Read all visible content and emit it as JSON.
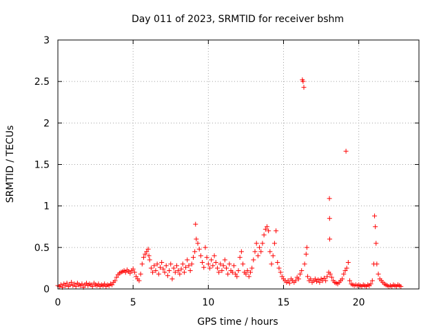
{
  "chart_data": {
    "type": "scatter",
    "title": "Day 011 of 2023, SRMTID for receiver bshm",
    "xlabel": "GPS time / hours",
    "ylabel": "SRMTID / TECUs",
    "xlim": [
      0,
      24
    ],
    "ylim": [
      0,
      3
    ],
    "xticks": [
      "0",
      "5",
      "10",
      "15",
      "20"
    ],
    "yticks": [
      "0",
      "0.5",
      "1",
      "1.5",
      "2",
      "2.5",
      "3"
    ],
    "grid": true,
    "legend": "none",
    "marker": "plus",
    "color": "#ff0000",
    "series": [
      {
        "points": [
          [
            0.0,
            0.04
          ],
          [
            0.1,
            0.03
          ],
          [
            0.2,
            0.05
          ],
          [
            0.3,
            0.02
          ],
          [
            0.4,
            0.06
          ],
          [
            0.5,
            0.04
          ],
          [
            0.6,
            0.07
          ],
          [
            0.7,
            0.03
          ],
          [
            0.8,
            0.05
          ],
          [
            0.9,
            0.08
          ],
          [
            1.0,
            0.04
          ],
          [
            1.1,
            0.06
          ],
          [
            1.2,
            0.03
          ],
          [
            1.3,
            0.07
          ],
          [
            1.4,
            0.05
          ],
          [
            1.5,
            0.04
          ],
          [
            1.6,
            0.06
          ],
          [
            1.7,
            0.02
          ],
          [
            1.8,
            0.05
          ],
          [
            1.9,
            0.07
          ],
          [
            2.0,
            0.04
          ],
          [
            2.1,
            0.06
          ],
          [
            2.2,
            0.05
          ],
          [
            2.3,
            0.03
          ],
          [
            2.4,
            0.07
          ],
          [
            2.5,
            0.05
          ],
          [
            2.6,
            0.04
          ],
          [
            2.7,
            0.06
          ],
          [
            2.8,
            0.03
          ],
          [
            2.9,
            0.05
          ],
          [
            3.0,
            0.04
          ],
          [
            3.1,
            0.06
          ],
          [
            3.2,
            0.03
          ],
          [
            3.3,
            0.05
          ],
          [
            3.4,
            0.04
          ],
          [
            3.5,
            0.06
          ],
          [
            3.6,
            0.05
          ],
          [
            3.7,
            0.08
          ],
          [
            3.8,
            0.1
          ],
          [
            3.9,
            0.14
          ],
          [
            4.0,
            0.17
          ],
          [
            4.1,
            0.19
          ],
          [
            4.2,
            0.2
          ],
          [
            4.3,
            0.21
          ],
          [
            4.4,
            0.22
          ],
          [
            4.5,
            0.2
          ],
          [
            4.6,
            0.23
          ],
          [
            4.7,
            0.21
          ],
          [
            4.8,
            0.19
          ],
          [
            4.9,
            0.22
          ],
          [
            5.0,
            0.24
          ],
          [
            5.1,
            0.2
          ],
          [
            5.2,
            0.15
          ],
          [
            5.3,
            0.12
          ],
          [
            5.4,
            0.1
          ],
          [
            5.5,
            0.18
          ],
          [
            5.6,
            0.3
          ],
          [
            5.7,
            0.38
          ],
          [
            5.8,
            0.42
          ],
          [
            5.9,
            0.45
          ],
          [
            6.0,
            0.48
          ],
          [
            6.05,
            0.4
          ],
          [
            6.1,
            0.35
          ],
          [
            6.2,
            0.25
          ],
          [
            6.3,
            0.2
          ],
          [
            6.4,
            0.28
          ],
          [
            6.5,
            0.22
          ],
          [
            6.6,
            0.3
          ],
          [
            6.7,
            0.18
          ],
          [
            6.8,
            0.26
          ],
          [
            6.9,
            0.32
          ],
          [
            7.0,
            0.24
          ],
          [
            7.1,
            0.2
          ],
          [
            7.2,
            0.28
          ],
          [
            7.3,
            0.16
          ],
          [
            7.4,
            0.22
          ],
          [
            7.5,
            0.3
          ],
          [
            7.6,
            0.12
          ],
          [
            7.7,
            0.25
          ],
          [
            7.8,
            0.2
          ],
          [
            7.9,
            0.28
          ],
          [
            8.0,
            0.22
          ],
          [
            8.1,
            0.18
          ],
          [
            8.2,
            0.24
          ],
          [
            8.3,
            0.3
          ],
          [
            8.4,
            0.2
          ],
          [
            8.5,
            0.26
          ],
          [
            8.6,
            0.35
          ],
          [
            8.7,
            0.28
          ],
          [
            8.8,
            0.22
          ],
          [
            8.9,
            0.3
          ],
          [
            9.0,
            0.38
          ],
          [
            9.1,
            0.45
          ],
          [
            9.15,
            0.78
          ],
          [
            9.2,
            0.6
          ],
          [
            9.3,
            0.55
          ],
          [
            9.4,
            0.48
          ],
          [
            9.5,
            0.4
          ],
          [
            9.6,
            0.32
          ],
          [
            9.7,
            0.26
          ],
          [
            9.8,
            0.5
          ],
          [
            9.9,
            0.38
          ],
          [
            10.0,
            0.3
          ],
          [
            10.1,
            0.25
          ],
          [
            10.2,
            0.35
          ],
          [
            10.3,
            0.28
          ],
          [
            10.4,
            0.4
          ],
          [
            10.5,
            0.32
          ],
          [
            10.6,
            0.25
          ],
          [
            10.7,
            0.2
          ],
          [
            10.8,
            0.3
          ],
          [
            10.9,
            0.22
          ],
          [
            11.0,
            0.28
          ],
          [
            11.1,
            0.35
          ],
          [
            11.2,
            0.25
          ],
          [
            11.3,
            0.18
          ],
          [
            11.4,
            0.3
          ],
          [
            11.5,
            0.22
          ],
          [
            11.6,
            0.2
          ],
          [
            11.7,
            0.28
          ],
          [
            11.8,
            0.18
          ],
          [
            11.9,
            0.15
          ],
          [
            12.0,
            0.22
          ],
          [
            12.1,
            0.38
          ],
          [
            12.2,
            0.45
          ],
          [
            12.3,
            0.3
          ],
          [
            12.4,
            0.2
          ],
          [
            12.5,
            0.18
          ],
          [
            12.6,
            0.22
          ],
          [
            12.7,
            0.15
          ],
          [
            12.8,
            0.2
          ],
          [
            12.9,
            0.25
          ],
          [
            13.0,
            0.35
          ],
          [
            13.1,
            0.45
          ],
          [
            13.2,
            0.55
          ],
          [
            13.3,
            0.4
          ],
          [
            13.4,
            0.5
          ],
          [
            13.5,
            0.45
          ],
          [
            13.6,
            0.55
          ],
          [
            13.7,
            0.65
          ],
          [
            13.8,
            0.72
          ],
          [
            13.9,
            0.75
          ],
          [
            14.0,
            0.7
          ],
          [
            14.1,
            0.45
          ],
          [
            14.2,
            0.3
          ],
          [
            14.3,
            0.4
          ],
          [
            14.4,
            0.55
          ],
          [
            14.5,
            0.7
          ],
          [
            14.6,
            0.32
          ],
          [
            14.7,
            0.25
          ],
          [
            14.8,
            0.2
          ],
          [
            14.9,
            0.15
          ],
          [
            15.0,
            0.12
          ],
          [
            15.1,
            0.1
          ],
          [
            15.2,
            0.08
          ],
          [
            15.3,
            0.1
          ],
          [
            15.4,
            0.07
          ],
          [
            15.5,
            0.12
          ],
          [
            15.6,
            0.1
          ],
          [
            15.7,
            0.08
          ],
          [
            15.8,
            0.1
          ],
          [
            15.9,
            0.14
          ],
          [
            16.0,
            0.12
          ],
          [
            16.1,
            0.18
          ],
          [
            16.2,
            0.22
          ],
          [
            16.25,
            2.52
          ],
          [
            16.3,
            2.5
          ],
          [
            16.35,
            2.43
          ],
          [
            16.4,
            0.3
          ],
          [
            16.5,
            0.42
          ],
          [
            16.55,
            0.5
          ],
          [
            16.6,
            0.15
          ],
          [
            16.7,
            0.1
          ],
          [
            16.8,
            0.12
          ],
          [
            16.9,
            0.08
          ],
          [
            17.0,
            0.1
          ],
          [
            17.1,
            0.12
          ],
          [
            17.2,
            0.09
          ],
          [
            17.3,
            0.11
          ],
          [
            17.4,
            0.08
          ],
          [
            17.5,
            0.12
          ],
          [
            17.6,
            0.1
          ],
          [
            17.7,
            0.13
          ],
          [
            17.8,
            0.1
          ],
          [
            17.9,
            0.15
          ],
          [
            18.0,
            0.2
          ],
          [
            18.05,
            1.09
          ],
          [
            18.06,
            0.85
          ],
          [
            18.07,
            0.6
          ],
          [
            18.1,
            0.18
          ],
          [
            18.2,
            0.14
          ],
          [
            18.3,
            0.1
          ],
          [
            18.4,
            0.08
          ],
          [
            18.5,
            0.07
          ],
          [
            18.6,
            0.06
          ],
          [
            18.7,
            0.08
          ],
          [
            18.8,
            0.1
          ],
          [
            18.9,
            0.12
          ],
          [
            19.0,
            0.18
          ],
          [
            19.1,
            0.22
          ],
          [
            19.15,
            1.66
          ],
          [
            19.2,
            0.25
          ],
          [
            19.3,
            0.32
          ],
          [
            19.4,
            0.1
          ],
          [
            19.5,
            0.06
          ],
          [
            19.6,
            0.05
          ],
          [
            19.7,
            0.04
          ],
          [
            19.8,
            0.05
          ],
          [
            19.9,
            0.04
          ],
          [
            20.0,
            0.05
          ],
          [
            20.1,
            0.04
          ],
          [
            20.2,
            0.03
          ],
          [
            20.3,
            0.05
          ],
          [
            20.4,
            0.04
          ],
          [
            20.5,
            0.03
          ],
          [
            20.6,
            0.05
          ],
          [
            20.7,
            0.04
          ],
          [
            20.8,
            0.06
          ],
          [
            20.9,
            0.1
          ],
          [
            21.0,
            0.3
          ],
          [
            21.05,
            0.88
          ],
          [
            21.1,
            0.75
          ],
          [
            21.15,
            0.55
          ],
          [
            21.2,
            0.3
          ],
          [
            21.3,
            0.18
          ],
          [
            21.4,
            0.12
          ],
          [
            21.5,
            0.1
          ],
          [
            21.6,
            0.08
          ],
          [
            21.7,
            0.06
          ],
          [
            21.8,
            0.05
          ],
          [
            21.9,
            0.04
          ],
          [
            22.0,
            0.03
          ],
          [
            22.1,
            0.04
          ],
          [
            22.2,
            0.03
          ],
          [
            22.3,
            0.05
          ],
          [
            22.4,
            0.04
          ],
          [
            22.5,
            0.03
          ],
          [
            22.6,
            0.05
          ],
          [
            22.7,
            0.04
          ],
          [
            22.8,
            0.03
          ]
        ]
      }
    ]
  }
}
